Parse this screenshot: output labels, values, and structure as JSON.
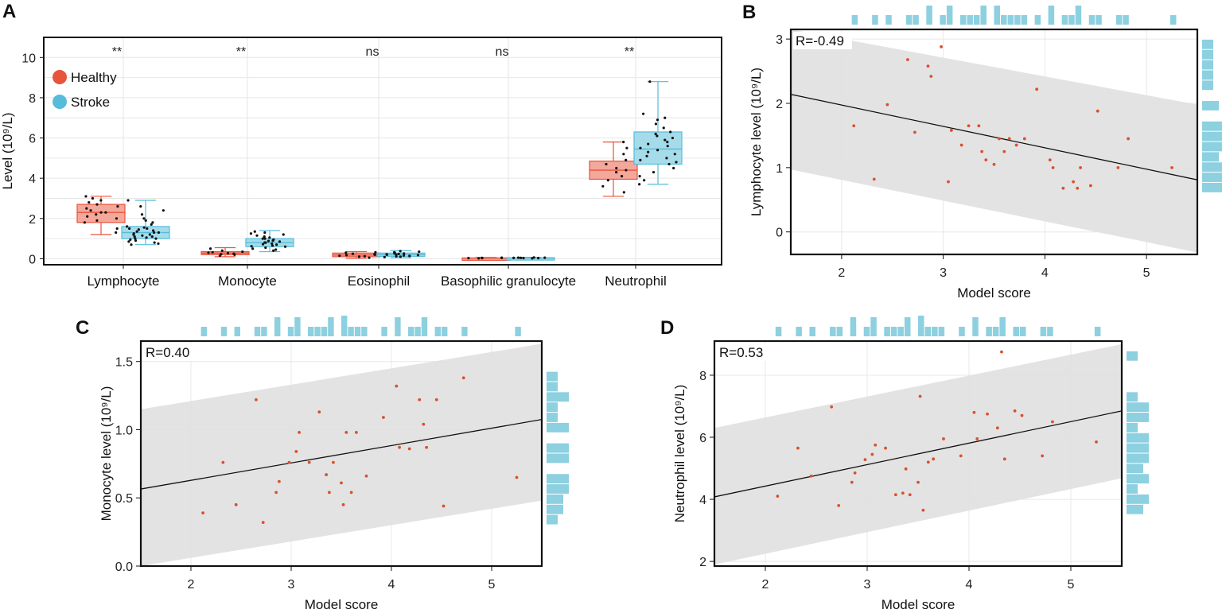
{
  "colors": {
    "healthy": "#E8533B",
    "stroke": "#56BCDA",
    "band": "#E0E0E0",
    "hist": "#8DD0E0",
    "point": "#D9502E"
  },
  "chart_data": [
    {
      "id": "A",
      "panel_label": "A",
      "type": "box",
      "ylabel": "Level (10⁹/L)",
      "ylim": [
        -0.3,
        11
      ],
      "yticks": [
        "0",
        "2",
        "4",
        "6",
        "8",
        "10"
      ],
      "legend": [
        {
          "name": "Healthy"
        },
        {
          "name": "Stroke"
        }
      ],
      "categories": [
        "Lymphocyte",
        "Monocyte",
        "Eosinophil",
        "Basophilic granulocyte",
        "Neutrophil"
      ],
      "significance": [
        "**",
        "**",
        "ns",
        "ns",
        "**"
      ],
      "boxes": [
        {
          "category": "Lymphocyte",
          "group": "Healthy",
          "min": 1.2,
          "q1": 1.8,
          "median": 2.3,
          "q3": 2.7,
          "max": 3.1,
          "points": [
            1.3,
            1.5,
            1.8,
            1.9,
            2.0,
            2.1,
            2.2,
            2.3,
            2.3,
            2.4,
            2.5,
            2.6,
            2.7,
            2.8,
            2.9,
            3.0,
            3.1
          ]
        },
        {
          "category": "Lymphocyte",
          "group": "Stroke",
          "min": 0.7,
          "q1": 1.0,
          "median": 1.3,
          "q3": 1.6,
          "max": 2.9,
          "points": [
            0.7,
            0.75,
            0.8,
            0.85,
            0.9,
            0.95,
            1.0,
            1.0,
            1.05,
            1.1,
            1.1,
            1.15,
            1.2,
            1.2,
            1.25,
            1.3,
            1.3,
            1.35,
            1.4,
            1.45,
            1.5,
            1.5,
            1.55,
            1.6,
            1.7,
            1.8,
            1.9,
            2.0,
            2.2,
            2.4,
            2.6,
            2.9
          ]
        },
        {
          "category": "Monocyte",
          "group": "Healthy",
          "min": 0.1,
          "q1": 0.2,
          "median": 0.28,
          "q3": 0.35,
          "max": 0.55,
          "points": [
            0.15,
            0.2,
            0.22,
            0.25,
            0.28,
            0.3,
            0.32,
            0.35,
            0.4,
            0.5
          ]
        },
        {
          "category": "Monocyte",
          "group": "Stroke",
          "min": 0.35,
          "q1": 0.6,
          "median": 0.8,
          "q3": 1.0,
          "max": 1.4,
          "points": [
            0.4,
            0.45,
            0.5,
            0.55,
            0.6,
            0.62,
            0.65,
            0.7,
            0.72,
            0.75,
            0.8,
            0.8,
            0.85,
            0.88,
            0.9,
            0.95,
            1.0,
            1.0,
            1.05,
            1.1,
            1.15,
            1.2,
            1.25,
            1.3,
            1.35
          ]
        },
        {
          "category": "Eosinophil",
          "group": "Healthy",
          "min": 0.02,
          "q1": 0.1,
          "median": 0.18,
          "q3": 0.28,
          "max": 0.35,
          "points": [
            0.05,
            0.1,
            0.12,
            0.15,
            0.18,
            0.2,
            0.22,
            0.25,
            0.3,
            0.32
          ]
        },
        {
          "category": "Eosinophil",
          "group": "Stroke",
          "min": 0.05,
          "q1": 0.12,
          "median": 0.2,
          "q3": 0.28,
          "max": 0.4,
          "points": [
            0.08,
            0.1,
            0.12,
            0.14,
            0.16,
            0.18,
            0.2,
            0.2,
            0.22,
            0.24,
            0.26,
            0.28,
            0.3,
            0.32,
            0.35,
            0.38
          ]
        },
        {
          "category": "Basophilic granulocyte",
          "group": "Healthy",
          "min": 0.0,
          "q1": 0.02,
          "median": 0.03,
          "q3": 0.04,
          "max": 0.06,
          "points": [
            0.02,
            0.03,
            0.03,
            0.04,
            0.04,
            0.05
          ]
        },
        {
          "category": "Basophilic granulocyte",
          "group": "Stroke",
          "min": 0.0,
          "q1": 0.02,
          "median": 0.03,
          "q3": 0.05,
          "max": 0.07,
          "points": [
            0.02,
            0.03,
            0.03,
            0.04,
            0.04,
            0.05,
            0.05,
            0.06
          ]
        },
        {
          "category": "Neutrophil",
          "group": "Healthy",
          "min": 3.1,
          "q1": 3.95,
          "median": 4.4,
          "q3": 4.85,
          "max": 5.8,
          "points": [
            3.3,
            3.6,
            3.9,
            4.1,
            4.3,
            4.4,
            4.5,
            4.7,
            4.9,
            5.2,
            5.5,
            5.8
          ]
        },
        {
          "category": "Neutrophil",
          "group": "Stroke",
          "min": 3.7,
          "q1": 4.7,
          "median": 5.45,
          "q3": 6.3,
          "max": 8.8,
          "points": [
            3.7,
            3.9,
            4.1,
            4.3,
            4.5,
            4.7,
            4.8,
            4.9,
            5.0,
            5.1,
            5.2,
            5.3,
            5.4,
            5.5,
            5.6,
            5.7,
            5.8,
            5.9,
            6.0,
            6.1,
            6.2,
            6.3,
            6.5,
            6.7,
            6.9,
            7.0,
            7.2,
            8.8
          ]
        }
      ]
    },
    {
      "id": "B",
      "panel_label": "B",
      "type": "scatter",
      "title": "R=-0.49",
      "xlabel": "Model score",
      "ylabel": "Lymphocyte level (10⁹/L)",
      "xlim": [
        1.5,
        5.5
      ],
      "ylim": [
        -0.35,
        3.15
      ],
      "xticks": [
        "2",
        "3",
        "4",
        "5"
      ],
      "yticks": [
        "0",
        "1",
        "2",
        "3"
      ],
      "line": {
        "x": [
          1.5,
          5.5
        ],
        "y": [
          2.14,
          0.81
        ]
      },
      "band": {
        "x": [
          1.5,
          5.5
        ],
        "upper": [
          3.15,
          1.98
        ],
        "lower": [
          0.97,
          -0.32
        ]
      },
      "points": [
        [
          2.12,
          1.65
        ],
        [
          2.32,
          0.82
        ],
        [
          2.45,
          1.98
        ],
        [
          2.65,
          2.68
        ],
        [
          2.72,
          1.55
        ],
        [
          2.85,
          2.58
        ],
        [
          2.88,
          2.42
        ],
        [
          2.98,
          2.88
        ],
        [
          3.05,
          0.78
        ],
        [
          3.08,
          1.58
        ],
        [
          3.18,
          1.35
        ],
        [
          3.25,
          1.65
        ],
        [
          3.35,
          1.65
        ],
        [
          3.38,
          1.25
        ],
        [
          3.42,
          1.12
        ],
        [
          3.5,
          1.05
        ],
        [
          3.55,
          1.45
        ],
        [
          3.6,
          1.25
        ],
        [
          3.65,
          1.45
        ],
        [
          3.72,
          1.35
        ],
        [
          3.8,
          1.45
        ],
        [
          3.92,
          2.22
        ],
        [
          4.05,
          1.12
        ],
        [
          4.08,
          1.0
        ],
        [
          4.18,
          0.68
        ],
        [
          4.28,
          0.78
        ],
        [
          4.32,
          0.68
        ],
        [
          4.35,
          1.0
        ],
        [
          4.45,
          0.72
        ],
        [
          4.52,
          1.88
        ],
        [
          4.72,
          1.0
        ],
        [
          4.82,
          1.45
        ],
        [
          5.25,
          1.0
        ]
      ]
    },
    {
      "id": "C",
      "panel_label": "C",
      "type": "scatter",
      "title": "R=0.40",
      "xlabel": "Model score",
      "ylabel": "Monocyte level (10⁹/L)",
      "xlim": [
        1.5,
        5.5
      ],
      "ylim": [
        0.0,
        1.65
      ],
      "xticks": [
        "2",
        "3",
        "4",
        "5"
      ],
      "yticks": [
        "0.0",
        "0.5",
        "1.0",
        "1.5"
      ],
      "line": {
        "x": [
          1.5,
          5.5
        ],
        "y": [
          0.565,
          1.075
        ]
      },
      "band": {
        "x": [
          1.5,
          5.5
        ],
        "upper": [
          1.15,
          1.63
        ],
        "lower": [
          0.0,
          0.48
        ]
      },
      "points": [
        [
          2.12,
          0.39
        ],
        [
          2.32,
          0.76
        ],
        [
          2.45,
          0.45
        ],
        [
          2.65,
          1.22
        ],
        [
          2.72,
          0.32
        ],
        [
          2.85,
          0.54
        ],
        [
          2.88,
          0.62
        ],
        [
          2.98,
          0.76
        ],
        [
          3.05,
          0.84
        ],
        [
          3.08,
          0.98
        ],
        [
          3.18,
          0.76
        ],
        [
          3.28,
          1.13
        ],
        [
          3.35,
          0.67
        ],
        [
          3.38,
          0.54
        ],
        [
          3.42,
          0.76
        ],
        [
          3.5,
          0.61
        ],
        [
          3.52,
          0.45
        ],
        [
          3.55,
          0.98
        ],
        [
          3.6,
          0.54
        ],
        [
          3.65,
          0.98
        ],
        [
          3.75,
          0.66
        ],
        [
          3.92,
          1.09
        ],
        [
          4.05,
          1.32
        ],
        [
          4.08,
          0.87
        ],
        [
          4.18,
          0.86
        ],
        [
          4.28,
          1.22
        ],
        [
          4.32,
          1.04
        ],
        [
          4.35,
          0.87
        ],
        [
          4.45,
          1.22
        ],
        [
          4.52,
          0.44
        ],
        [
          4.72,
          1.38
        ],
        [
          5.25,
          0.65
        ]
      ]
    },
    {
      "id": "D",
      "panel_label": "D",
      "type": "scatter",
      "title": "R=0.53",
      "xlabel": "Model score",
      "ylabel": "Neutrophil level (10⁹/L)",
      "xlim": [
        1.5,
        5.5
      ],
      "ylim": [
        1.85,
        9.1
      ],
      "xticks": [
        "2",
        "3",
        "4",
        "5"
      ],
      "yticks": [
        "2",
        "4",
        "6",
        "8"
      ],
      "line": {
        "x": [
          1.5,
          5.5
        ],
        "y": [
          4.08,
          6.85
        ]
      },
      "band": {
        "x": [
          1.5,
          5.5
        ],
        "upper": [
          6.3,
          9.0
        ],
        "lower": [
          1.9,
          4.68
        ]
      },
      "points": [
        [
          2.12,
          4.1
        ],
        [
          2.32,
          5.65
        ],
        [
          2.45,
          4.75
        ],
        [
          2.65,
          6.98
        ],
        [
          2.72,
          3.8
        ],
        [
          2.85,
          4.55
        ],
        [
          2.88,
          4.85
        ],
        [
          2.98,
          5.28
        ],
        [
          3.05,
          5.45
        ],
        [
          3.08,
          5.75
        ],
        [
          3.18,
          5.65
        ],
        [
          3.28,
          4.15
        ],
        [
          3.35,
          4.2
        ],
        [
          3.38,
          4.98
        ],
        [
          3.42,
          4.15
        ],
        [
          3.5,
          4.55
        ],
        [
          3.52,
          7.32
        ],
        [
          3.55,
          3.65
        ],
        [
          3.6,
          5.2
        ],
        [
          3.65,
          5.3
        ],
        [
          3.75,
          5.95
        ],
        [
          3.92,
          5.4
        ],
        [
          4.05,
          6.8
        ],
        [
          4.08,
          5.95
        ],
        [
          4.18,
          6.75
        ],
        [
          4.28,
          6.3
        ],
        [
          4.32,
          8.75
        ],
        [
          4.35,
          5.3
        ],
        [
          4.45,
          6.85
        ],
        [
          4.52,
          6.7
        ],
        [
          4.72,
          5.4
        ],
        [
          4.82,
          6.5
        ],
        [
          5.25,
          5.85
        ]
      ]
    }
  ]
}
